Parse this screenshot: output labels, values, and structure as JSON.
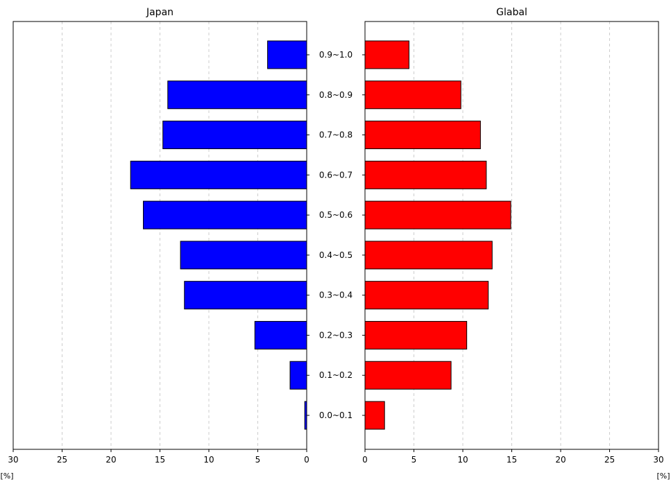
{
  "chart_data": [
    {
      "type": "bar",
      "orientation": "horizontal",
      "direction": "leftward",
      "title": "Japan",
      "categories": [
        "0.0~0.1",
        "0.1~0.2",
        "0.2~0.3",
        "0.3~0.4",
        "0.4~0.5",
        "0.5~0.6",
        "0.6~0.7",
        "0.7~0.8",
        "0.8~0.9",
        "0.9~1.0"
      ],
      "values": [
        0.2,
        1.7,
        5.3,
        12.5,
        12.9,
        16.7,
        18.0,
        14.7,
        14.2,
        4.0
      ],
      "color": "#0000ff",
      "xlim": [
        30,
        0
      ],
      "xticks": [
        30,
        25,
        20,
        15,
        10,
        5,
        0
      ],
      "xunit": "[%]",
      "grid": true
    },
    {
      "type": "bar",
      "orientation": "horizontal",
      "direction": "rightward",
      "title": "Glabal",
      "categories": [
        "0.0~0.1",
        "0.1~0.2",
        "0.2~0.3",
        "0.3~0.4",
        "0.4~0.5",
        "0.5~0.6",
        "0.6~0.7",
        "0.7~0.8",
        "0.8~0.9",
        "0.9~1.0"
      ],
      "values": [
        2.0,
        8.8,
        10.4,
        12.6,
        13.0,
        14.9,
        12.4,
        11.8,
        9.8,
        4.5
      ],
      "color": "#ff0000",
      "xlim": [
        0,
        30
      ],
      "xticks": [
        0,
        5,
        10,
        15,
        20,
        25,
        30
      ],
      "xunit": "[%]",
      "grid": true
    }
  ]
}
